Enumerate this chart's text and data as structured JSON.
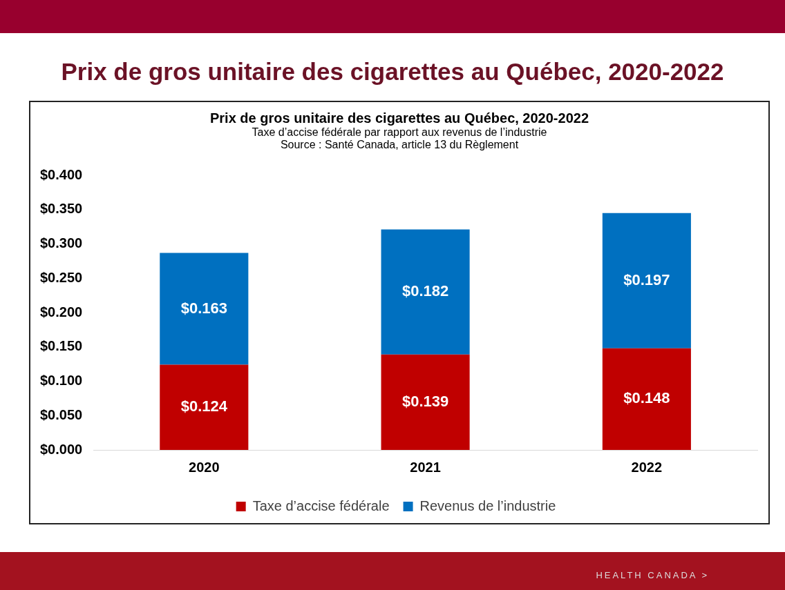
{
  "chart_data": {
    "type": "bar",
    "stacked": true,
    "title": "Prix de gros unitaire des cigarettes au Québec, 2020-2022",
    "subtitle": "Taxe d’accise fédérale par rapport aux revenus de l’industrie",
    "annotations": [
      "Prix de gros unitaire des cigarettes au Québec, 2020-2022",
      "Source : Santé Canada, article 13 du Règlement",
      "HEALTH CANADA >"
    ],
    "categories": [
      "2020",
      "2021",
      "2022"
    ],
    "series": [
      {
        "name": "Taxe d’accise fédérale",
        "color": "#c00000",
        "values": [
          0.124,
          0.139,
          0.148
        ],
        "value_labels": [
          "$0.124",
          "$0.139",
          "$0.148"
        ]
      },
      {
        "name": "Revenus de l’industrie",
        "color": "#0070c0",
        "values": [
          0.163,
          0.182,
          0.197
        ],
        "value_labels": [
          "$0.163",
          "$0.182",
          "$0.197"
        ]
      }
    ],
    "ylim": [
      0,
      0.4
    ],
    "yticks": [
      {
        "value": 0,
        "label": "$0.000"
      },
      {
        "value": 0.05,
        "label": "$0.050"
      },
      {
        "value": 0.1,
        "label": "$0.100"
      },
      {
        "value": 0.15,
        "label": "$0.150"
      },
      {
        "value": 0.2,
        "label": "$0.200"
      },
      {
        "value": 0.25,
        "label": "$0.250"
      },
      {
        "value": 0.3,
        "label": "$0.300"
      },
      {
        "value": 0.35,
        "label": "$0.350"
      },
      {
        "value": 0.4,
        "label": "$0.400"
      }
    ],
    "grid": false,
    "legend": "bottom",
    "data_labels": true
  }
}
